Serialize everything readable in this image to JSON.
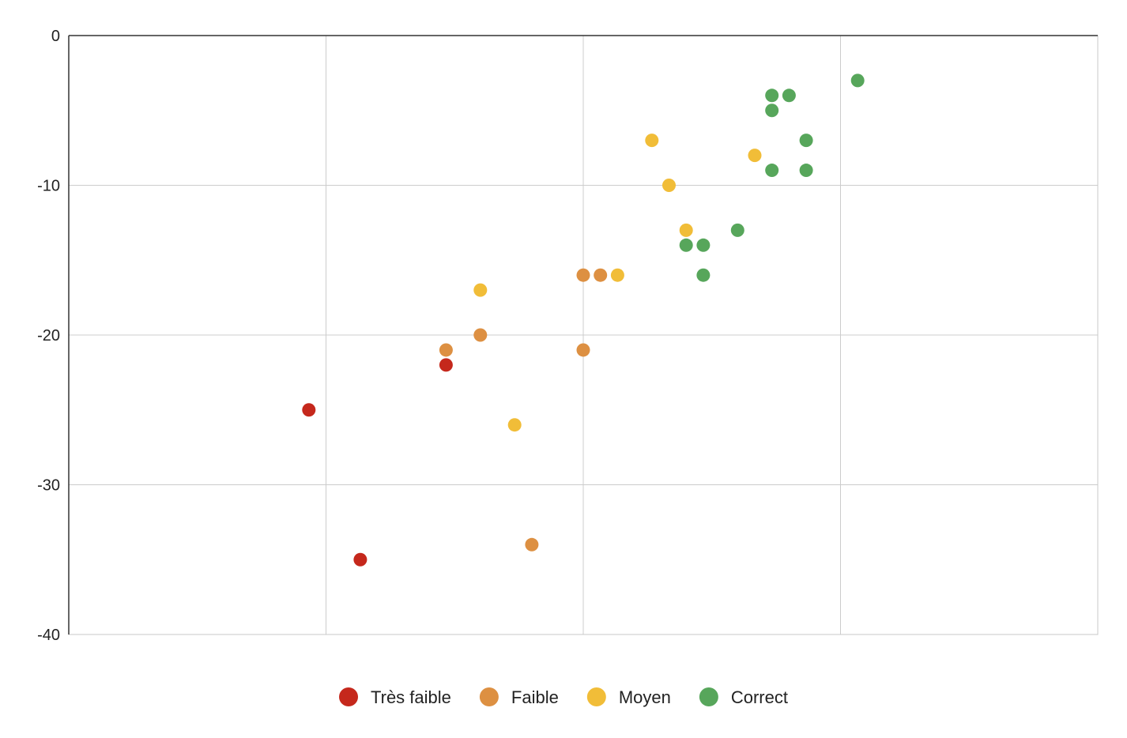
{
  "chart_data": {
    "type": "scatter",
    "title": "",
    "xlabel": "",
    "ylabel": "",
    "xlim": [
      0,
      6
    ],
    "ylim": [
      -40,
      0
    ],
    "yticks": [
      {
        "value": 0,
        "label": "0"
      },
      {
        "value": -10,
        "label": "-10"
      },
      {
        "value": -20,
        "label": "-20"
      },
      {
        "value": -30,
        "label": "-30"
      },
      {
        "value": -40,
        "label": "-40"
      }
    ],
    "xgrid": [
      1.5,
      3,
      4.5
    ],
    "legend_position": "bottom",
    "series": [
      {
        "name": "Très faible",
        "color": "#c5281c",
        "points": [
          {
            "x": 1.4,
            "y": -25
          },
          {
            "x": 1.7,
            "y": -35
          },
          {
            "x": 2.2,
            "y": -22
          }
        ]
      },
      {
        "name": "Faible",
        "color": "#dd9042",
        "points": [
          {
            "x": 2.2,
            "y": -21
          },
          {
            "x": 2.4,
            "y": -20
          },
          {
            "x": 2.7,
            "y": -34
          },
          {
            "x": 3.0,
            "y": -16
          },
          {
            "x": 3.1,
            "y": -16
          },
          {
            "x": 3.0,
            "y": -21
          }
        ]
      },
      {
        "name": "Moyen",
        "color": "#f1bd38",
        "points": [
          {
            "x": 2.4,
            "y": -17
          },
          {
            "x": 2.6,
            "y": -26
          },
          {
            "x": 3.2,
            "y": -16
          },
          {
            "x": 3.4,
            "y": -7
          },
          {
            "x": 3.5,
            "y": -10
          },
          {
            "x": 3.6,
            "y": -13
          },
          {
            "x": 4.0,
            "y": -8
          }
        ]
      },
      {
        "name": "Correct",
        "color": "#57a65b",
        "points": [
          {
            "x": 3.6,
            "y": -14
          },
          {
            "x": 3.7,
            "y": -14
          },
          {
            "x": 3.7,
            "y": -16
          },
          {
            "x": 3.9,
            "y": -13
          },
          {
            "x": 4.1,
            "y": -4
          },
          {
            "x": 4.2,
            "y": -4
          },
          {
            "x": 4.1,
            "y": -5
          },
          {
            "x": 4.3,
            "y": -7
          },
          {
            "x": 4.1,
            "y": -9
          },
          {
            "x": 4.3,
            "y": -9
          },
          {
            "x": 4.6,
            "y": -3
          }
        ]
      }
    ]
  }
}
